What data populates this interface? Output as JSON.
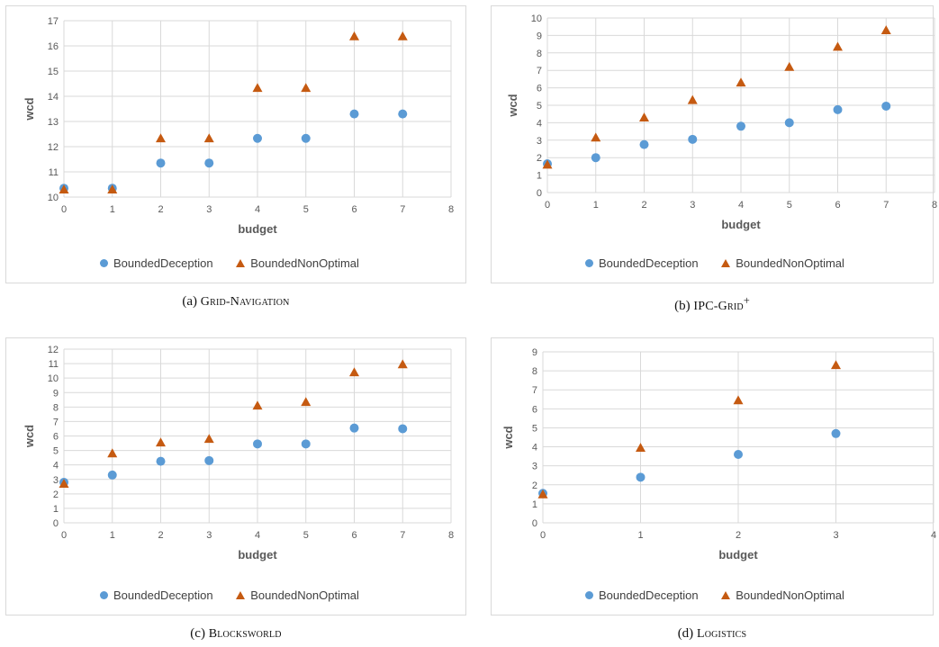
{
  "colors": {
    "deception": "#5b9bd5",
    "nonoptimal": "#c55a11",
    "grid": "#d9d9d9",
    "text": "#595959"
  },
  "legend": {
    "series1": "BoundedDeception",
    "series2": "BoundedNonOptimal"
  },
  "chart_data": [
    {
      "type": "scatter",
      "caption_prefix": "(a)",
      "caption_name": "Grid-Navigation",
      "caption_sup": "",
      "xlabel": "budget",
      "ylabel": "wcd",
      "xlim": [
        0,
        8
      ],
      "ylim": [
        10,
        17
      ],
      "xstep": 1,
      "ystep": 1,
      "grid": true,
      "legend_position": "bottom",
      "x": [
        0,
        1,
        2,
        3,
        4,
        5,
        6,
        7
      ],
      "series": [
        {
          "name": "BoundedDeception",
          "marker": "circle",
          "values": [
            10.35,
            10.35,
            11.35,
            11.35,
            12.33,
            12.33,
            13.3,
            13.3
          ]
        },
        {
          "name": "BoundedNonOptimal",
          "marker": "triangle",
          "values": [
            10.3,
            10.3,
            12.33,
            12.33,
            14.33,
            14.33,
            16.38,
            16.38
          ]
        }
      ]
    },
    {
      "type": "scatter",
      "caption_prefix": "(b)",
      "caption_name": "IPC-Grid",
      "caption_sup": "+",
      "xlabel": "budget",
      "ylabel": "wcd",
      "xlim": [
        0,
        8
      ],
      "ylim": [
        0,
        10
      ],
      "xstep": 1,
      "ystep": 1,
      "grid": true,
      "legend_position": "bottom",
      "x": [
        0,
        1,
        2,
        3,
        4,
        5,
        6,
        7
      ],
      "series": [
        {
          "name": "BoundedDeception",
          "marker": "circle",
          "values": [
            1.65,
            2.0,
            2.75,
            3.05,
            3.8,
            4.0,
            4.75,
            4.95
          ]
        },
        {
          "name": "BoundedNonOptimal",
          "marker": "triangle",
          "values": [
            1.6,
            3.15,
            4.3,
            5.3,
            6.3,
            7.2,
            8.35,
            9.3
          ]
        }
      ]
    },
    {
      "type": "scatter",
      "caption_prefix": "(c)",
      "caption_name": "Blocksworld",
      "caption_sup": "",
      "xlabel": "budget",
      "ylabel": "wcd",
      "xlim": [
        0,
        8
      ],
      "ylim": [
        0,
        12
      ],
      "xstep": 1,
      "ystep": 1,
      "grid": true,
      "legend_position": "bottom",
      "x": [
        0,
        1,
        2,
        3,
        4,
        5,
        6,
        7
      ],
      "series": [
        {
          "name": "BoundedDeception",
          "marker": "circle",
          "values": [
            2.8,
            3.3,
            4.25,
            4.3,
            5.45,
            5.45,
            6.55,
            6.5
          ]
        },
        {
          "name": "BoundedNonOptimal",
          "marker": "triangle",
          "values": [
            2.7,
            4.8,
            5.55,
            5.8,
            8.1,
            8.35,
            10.4,
            10.95
          ]
        }
      ]
    },
    {
      "type": "scatter",
      "caption_prefix": "(d)",
      "caption_name": "Logistics",
      "caption_sup": "",
      "xlabel": "budget",
      "ylabel": "wcd",
      "xlim": [
        0,
        4
      ],
      "ylim": [
        0,
        9
      ],
      "xstep": 1,
      "ystep": 1,
      "grid": true,
      "legend_position": "bottom",
      "x": [
        0,
        1,
        2,
        3
      ],
      "series": [
        {
          "name": "BoundedDeception",
          "marker": "circle",
          "values": [
            1.55,
            2.4,
            3.6,
            4.7
          ]
        },
        {
          "name": "BoundedNonOptimal",
          "marker": "triangle",
          "values": [
            1.5,
            3.95,
            6.45,
            8.3
          ]
        }
      ]
    }
  ]
}
